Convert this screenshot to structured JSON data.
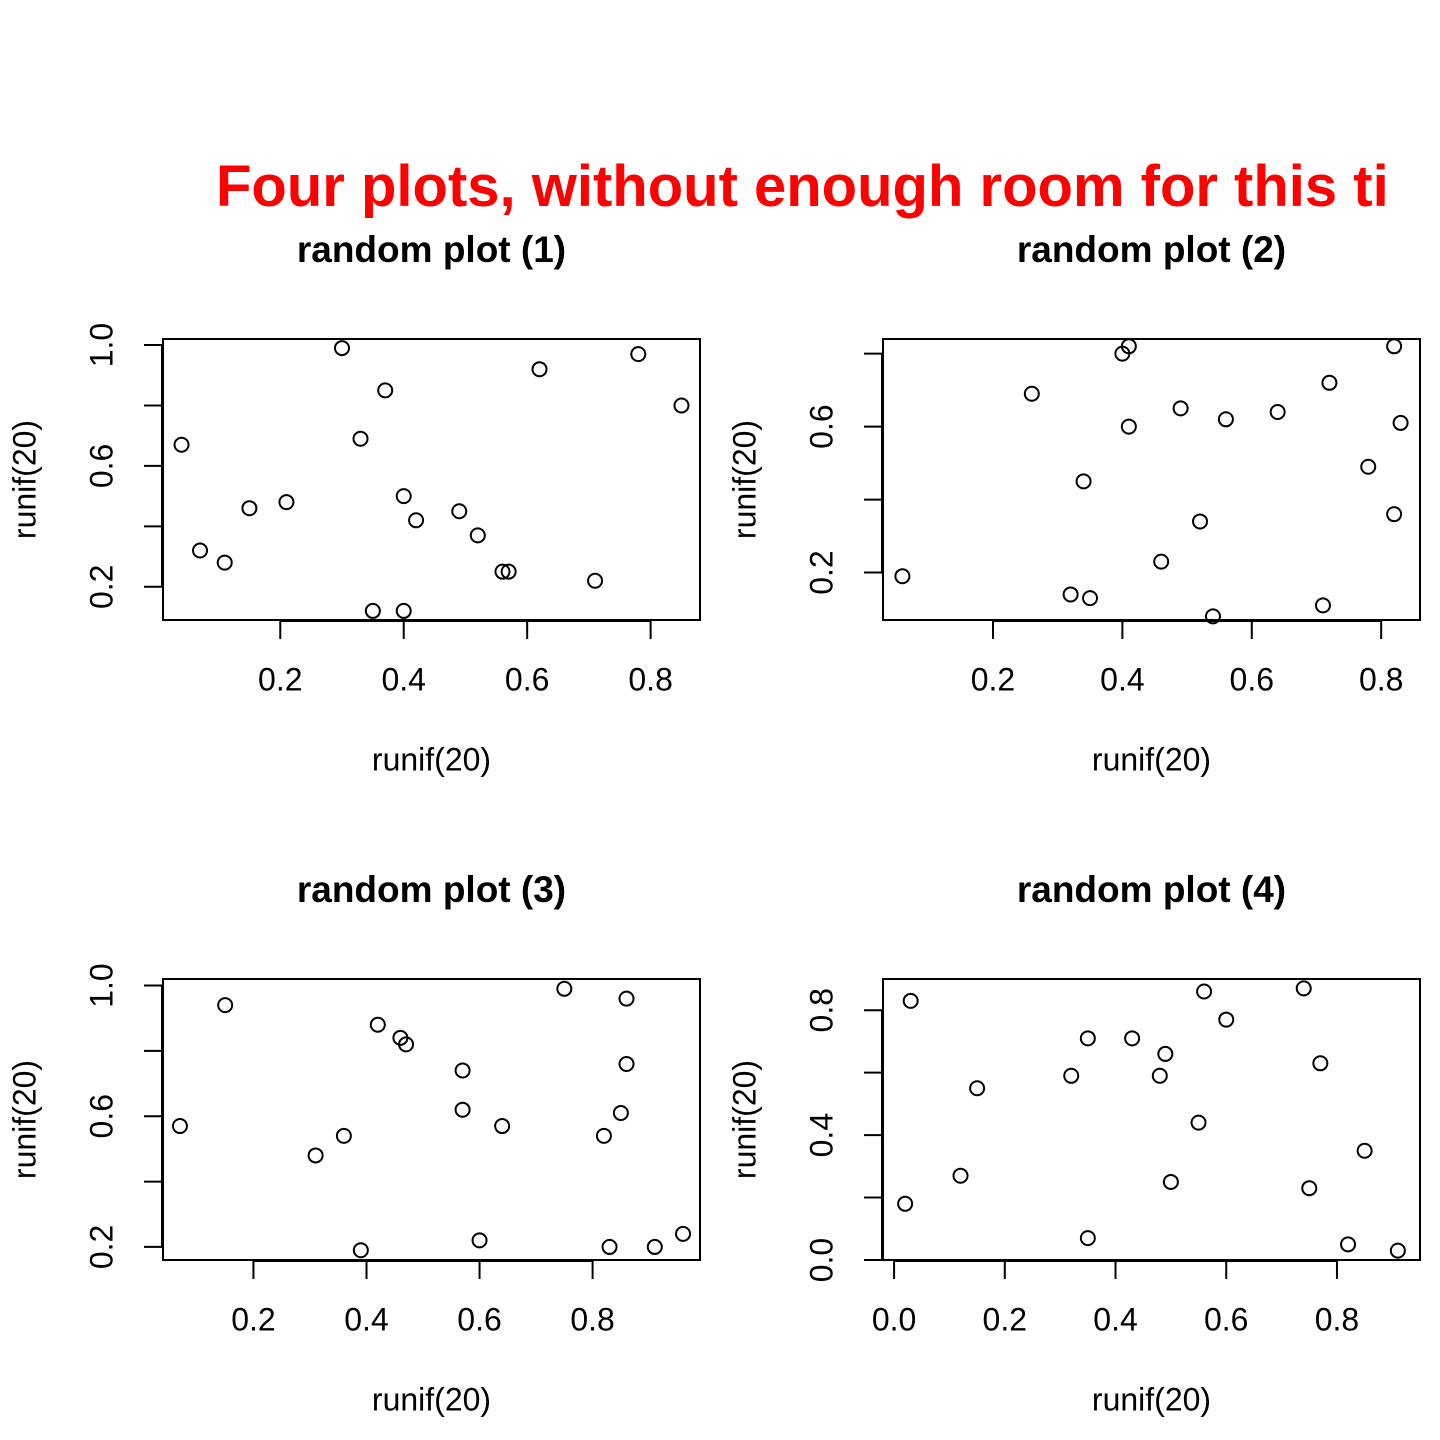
{
  "figure_title": "Four plots, without enough room for this ti",
  "colors": {
    "title": "#ff0000",
    "ink": "#000000",
    "background": "#ffffff"
  },
  "chart_data": [
    {
      "type": "scatter",
      "title": "random plot (1)",
      "xlabel": "runif(20)",
      "ylabel": "runif(20)",
      "xlim": [
        0.01,
        0.88
      ],
      "ylim": [
        0.09,
        1.02
      ],
      "xticks": [
        0.2,
        0.4,
        0.6,
        0.8
      ],
      "yticks": [
        0.2,
        0.4,
        0.6,
        0.8,
        1.0
      ],
      "yticklabels": [
        "0.2",
        "",
        "0.6",
        "",
        "1.0"
      ],
      "points": [
        [
          0.04,
          0.67
        ],
        [
          0.07,
          0.32
        ],
        [
          0.11,
          0.28
        ],
        [
          0.15,
          0.46
        ],
        [
          0.21,
          0.48
        ],
        [
          0.3,
          0.99
        ],
        [
          0.33,
          0.69
        ],
        [
          0.35,
          0.12
        ],
        [
          0.37,
          0.85
        ],
        [
          0.4,
          0.5
        ],
        [
          0.4,
          0.12
        ],
        [
          0.42,
          0.42
        ],
        [
          0.49,
          0.45
        ],
        [
          0.52,
          0.37
        ],
        [
          0.56,
          0.25
        ],
        [
          0.57,
          0.25
        ],
        [
          0.62,
          0.92
        ],
        [
          0.71,
          0.22
        ],
        [
          0.78,
          0.97
        ],
        [
          0.85,
          0.8
        ]
      ]
    },
    {
      "type": "scatter",
      "title": "random plot (2)",
      "xlabel": "runif(20)",
      "ylabel": "runif(20)",
      "xlim": [
        0.03,
        0.86
      ],
      "ylim": [
        0.07,
        0.84
      ],
      "xticks": [
        0.2,
        0.4,
        0.6,
        0.8
      ],
      "yticks": [
        0.2,
        0.4,
        0.6,
        0.8
      ],
      "yticklabels": [
        "0.2",
        "",
        "0.6",
        ""
      ],
      "points": [
        [
          0.06,
          0.19
        ],
        [
          0.26,
          0.69
        ],
        [
          0.32,
          0.14
        ],
        [
          0.34,
          0.45
        ],
        [
          0.35,
          0.13
        ],
        [
          0.4,
          0.8
        ],
        [
          0.41,
          0.82
        ],
        [
          0.41,
          0.6
        ],
        [
          0.46,
          0.23
        ],
        [
          0.49,
          0.65
        ],
        [
          0.52,
          0.34
        ],
        [
          0.54,
          0.08
        ],
        [
          0.56,
          0.62
        ],
        [
          0.64,
          0.64
        ],
        [
          0.71,
          0.11
        ],
        [
          0.72,
          0.72
        ],
        [
          0.78,
          0.49
        ],
        [
          0.82,
          0.36
        ],
        [
          0.82,
          0.82
        ],
        [
          0.83,
          0.61
        ]
      ]
    },
    {
      "type": "scatter",
      "title": "random plot (3)",
      "xlabel": "runif(20)",
      "ylabel": "runif(20)",
      "xlim": [
        0.04,
        0.99
      ],
      "ylim": [
        0.16,
        1.02
      ],
      "xticks": [
        0.2,
        0.4,
        0.6,
        0.8
      ],
      "yticks": [
        0.2,
        0.4,
        0.6,
        0.8,
        1.0
      ],
      "yticklabels": [
        "0.2",
        "",
        "0.6",
        "",
        "1.0"
      ],
      "points": [
        [
          0.07,
          0.57
        ],
        [
          0.15,
          0.94
        ],
        [
          0.31,
          0.48
        ],
        [
          0.36,
          0.54
        ],
        [
          0.39,
          0.19
        ],
        [
          0.42,
          0.88
        ],
        [
          0.46,
          0.84
        ],
        [
          0.47,
          0.82
        ],
        [
          0.57,
          0.74
        ],
        [
          0.57,
          0.62
        ],
        [
          0.6,
          0.22
        ],
        [
          0.64,
          0.57
        ],
        [
          0.75,
          0.99
        ],
        [
          0.82,
          0.54
        ],
        [
          0.83,
          0.2
        ],
        [
          0.85,
          0.61
        ],
        [
          0.86,
          0.96
        ],
        [
          0.86,
          0.76
        ],
        [
          0.91,
          0.2
        ],
        [
          0.96,
          0.24
        ]
      ]
    },
    {
      "type": "scatter",
      "title": "random plot (4)",
      "xlabel": "runif(20)",
      "ylabel": "runif(20)",
      "xlim": [
        -0.02,
        0.95
      ],
      "ylim": [
        0.0,
        0.9
      ],
      "xticks": [
        0.0,
        0.2,
        0.4,
        0.6,
        0.8
      ],
      "yticks": [
        0.0,
        0.2,
        0.4,
        0.6,
        0.8
      ],
      "yticklabels": [
        "0.0",
        "",
        "0.4",
        "",
        "0.8"
      ],
      "points": [
        [
          0.02,
          0.18
        ],
        [
          0.03,
          0.83
        ],
        [
          0.12,
          0.27
        ],
        [
          0.15,
          0.55
        ],
        [
          0.32,
          0.59
        ],
        [
          0.35,
          0.71
        ],
        [
          0.35,
          0.07
        ],
        [
          0.43,
          0.71
        ],
        [
          0.48,
          0.59
        ],
        [
          0.49,
          0.66
        ],
        [
          0.5,
          0.25
        ],
        [
          0.55,
          0.44
        ],
        [
          0.56,
          0.86
        ],
        [
          0.6,
          0.77
        ],
        [
          0.74,
          0.87
        ],
        [
          0.75,
          0.23
        ],
        [
          0.77,
          0.63
        ],
        [
          0.82,
          0.05
        ],
        [
          0.85,
          0.35
        ],
        [
          0.91,
          0.03
        ]
      ]
    }
  ]
}
